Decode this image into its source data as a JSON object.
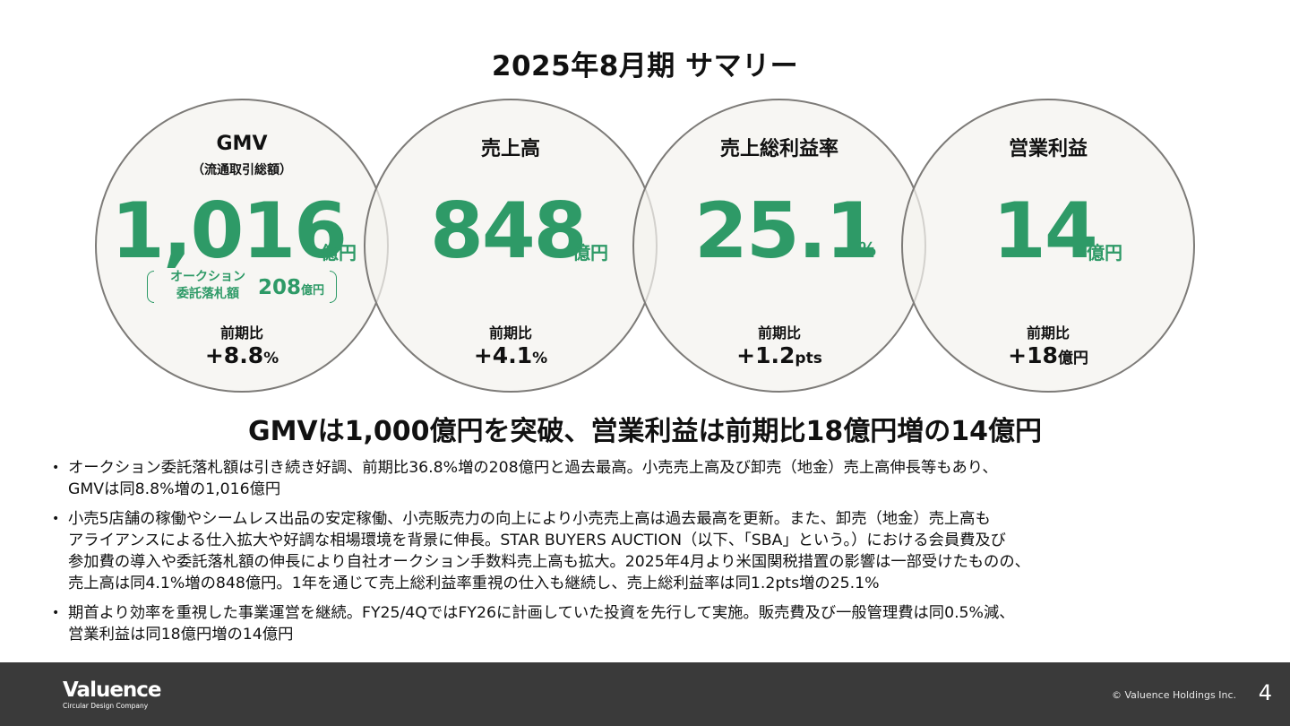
{
  "title": "2025年8月期 サマリー",
  "kpis": [
    {
      "label": "GMV",
      "sublabel": "（流通取引総額）",
      "value": "1,016",
      "unit": "億円",
      "yoy_label": "前期比",
      "yoy_value": "+8.8",
      "yoy_unit": "%"
    },
    {
      "label": "売上高",
      "value": "848",
      "unit": "億円",
      "yoy_label": "前期比",
      "yoy_value": "+4.1",
      "yoy_unit": "%"
    },
    {
      "label": "売上総利益率",
      "value": "25.1",
      "unit": "%",
      "yoy_label": "前期比",
      "yoy_value": "+1.2",
      "yoy_unit": "pts"
    },
    {
      "label": "営業利益",
      "value": "14",
      "unit": "億円",
      "yoy_label": "前期比",
      "yoy_value": "+18",
      "yoy_unit": "億円"
    }
  ],
  "auction": {
    "line1": "オークション",
    "line2": "委託落札額",
    "value": "208",
    "unit": "億円"
  },
  "headline": "GMVは1,000億円を突破、営業利益は前期比18億円増の14億円",
  "bullets": [
    "オークション委託落札額は引き続き好調、前期比36.8%増の208億円と過去最高。小売売上高及び卸売（地金）売上高伸長等もあり、\nGMVは同8.8%増の1,016億円",
    "小売5店舗の稼働やシームレス出品の安定稼働、小売販売力の向上により小売売上高は過去最高を更新。また、卸売（地金）売上高も\nアライアンスによる仕入拡大や好調な相場環境を背景に伸長。STAR BUYERS AUCTION（以下、「SBA」という。）における会員費及び\n参加費の導入や委託落札額の伸長により自社オークション手数料売上高も拡大。2025年4月より米国関税措置の影響は一部受けたものの、\n売上高は同4.1%増の848億円。1年を通じて売上総利益率重視の仕入も継続し、売上総利益率は同1.2pts増の25.1%",
    "期首より効率を重視した事業運営を継続。FY25/4QではFY26に計画していた投資を先行して実施。販売費及び一般管理費は同0.5%減、\n営業利益は同18億円増の14億円"
  ],
  "footer": {
    "logo": "Valuence",
    "tagline": "Circular Design Company",
    "copyright": "© Valuence Holdings Inc.",
    "page": "4"
  },
  "colors": {
    "accent": "#2e9a67",
    "circle_border": "#7d7b78",
    "footer_bg": "#3a3a3a"
  }
}
